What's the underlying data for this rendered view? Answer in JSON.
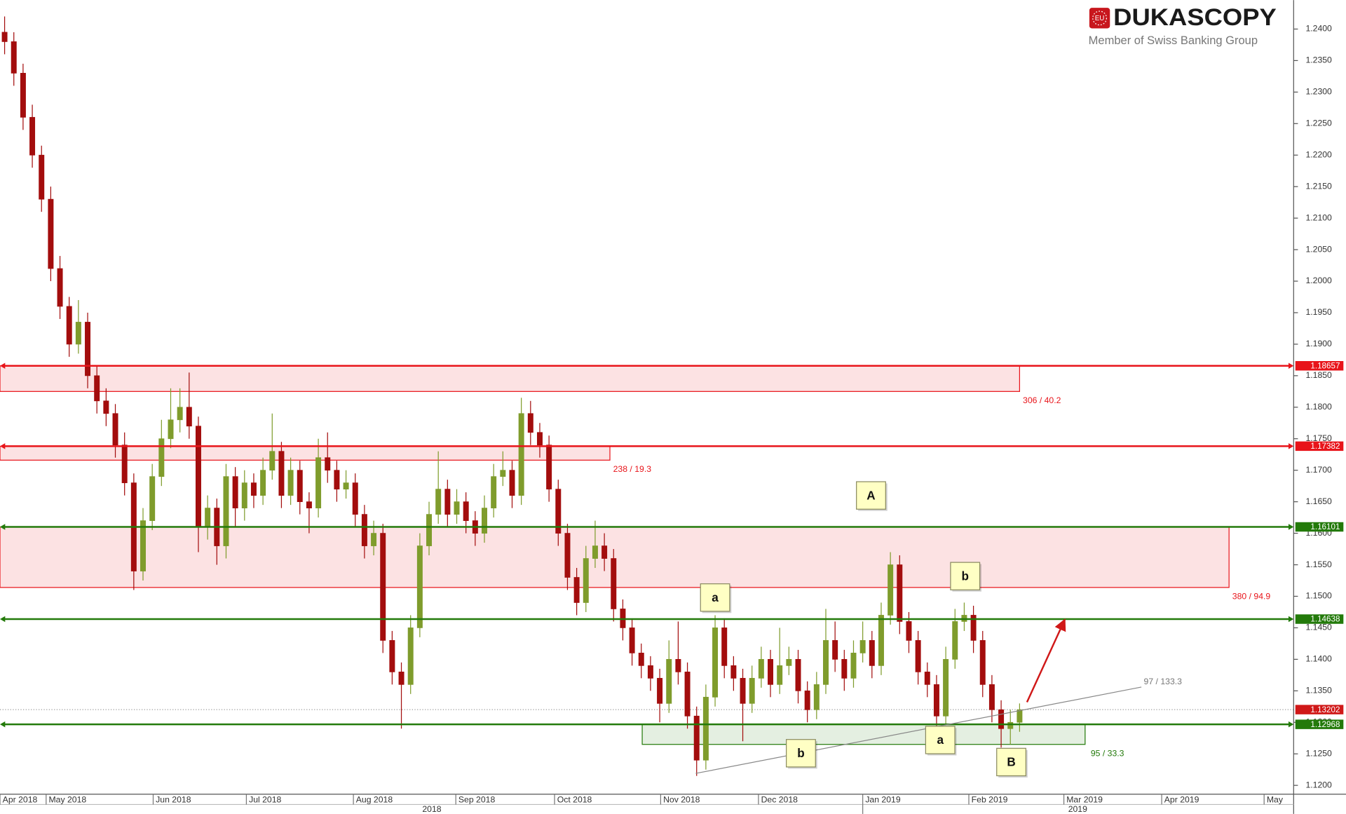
{
  "chart_data": {
    "type": "candlestick",
    "logo": {
      "badge": "EU",
      "name": "DUKASCOPY",
      "tagline": "Member of Swiss Banking Group"
    },
    "up_color": "#7f9c2c",
    "down_color": "#a30d0d",
    "xlim": [
      -0.5,
      139.7
    ],
    "ylim": [
      1.1186,
      1.2446
    ],
    "yticks": [
      {
        "value": 1.12,
        "label": "1.1200"
      },
      {
        "value": 1.125,
        "label": "1.1250"
      },
      {
        "value": 1.13,
        "label": "1.1300"
      },
      {
        "value": 1.135,
        "label": "1.1350"
      },
      {
        "value": 1.14,
        "label": "1.1400"
      },
      {
        "value": 1.145,
        "label": "1.1450"
      },
      {
        "value": 1.15,
        "label": "1.1500"
      },
      {
        "value": 1.155,
        "label": "1.1550"
      },
      {
        "value": 1.16,
        "label": "1.1600"
      },
      {
        "value": 1.165,
        "label": "1.1650"
      },
      {
        "value": 1.17,
        "label": "1.1700"
      },
      {
        "value": 1.175,
        "label": "1.1750"
      },
      {
        "value": 1.18,
        "label": "1.1800"
      },
      {
        "value": 1.185,
        "label": "1.1850"
      },
      {
        "value": 1.19,
        "label": "1.1900"
      },
      {
        "value": 1.195,
        "label": "1.1950"
      },
      {
        "value": 1.2,
        "label": "1.2000"
      },
      {
        "value": 1.205,
        "label": "1.2050"
      },
      {
        "value": 1.21,
        "label": "1.2100"
      },
      {
        "value": 1.215,
        "label": "1.2150"
      },
      {
        "value": 1.22,
        "label": "1.2200"
      },
      {
        "value": 1.225,
        "label": "1.2250"
      },
      {
        "value": 1.23,
        "label": "1.2300"
      },
      {
        "value": 1.235,
        "label": "1.2350"
      },
      {
        "value": 1.24,
        "label": "1.2400"
      }
    ],
    "xticks": [
      {
        "value": -0.5,
        "label": "Apr 2018"
      },
      {
        "value": 4.5,
        "label": "May 2018"
      },
      {
        "value": 16.1,
        "label": "Jun 2018"
      },
      {
        "value": 26.2,
        "label": "Jul 2018"
      },
      {
        "value": 37.8,
        "label": "Aug 2018"
      },
      {
        "value": 48.9,
        "label": "Sep 2018"
      },
      {
        "value": 59.6,
        "label": "Oct 2018"
      },
      {
        "value": 71.1,
        "label": "Nov 2018"
      },
      {
        "value": 81.7,
        "label": "Dec 2018"
      },
      {
        "value": 93.0,
        "label": "Jan 2019"
      },
      {
        "value": 104.5,
        "label": "Feb 2019"
      },
      {
        "value": 114.8,
        "label": "Mar 2019"
      },
      {
        "value": 125.4,
        "label": "Apr 2019"
      },
      {
        "value": 136.5,
        "label": "May"
      }
    ],
    "xticks2": [
      {
        "value": 46.3,
        "label": "2018"
      },
      {
        "value": 116.3,
        "label": "2019"
      }
    ],
    "levels": [
      {
        "value": 1.18657,
        "color": "#e8141a"
      },
      {
        "value": 1.17382,
        "color": "#e8141a"
      },
      {
        "value": 1.16101,
        "color": "#237a0a"
      },
      {
        "value": 1.14638,
        "color": "#237a0a"
      },
      {
        "value": 1.12968,
        "color": "#237a0a"
      }
    ],
    "current": {
      "value": 1.13202,
      "color": "#d01818"
    },
    "zones": [
      {
        "x": [
          -0.5,
          110.0
        ],
        "y": [
          1.1825,
          1.18657
        ],
        "color": "#e8141a",
        "label": "306 / 40.2"
      },
      {
        "x": [
          -0.5,
          65.6
        ],
        "y": [
          1.1716,
          1.1738
        ],
        "color": "#e8141a",
        "label": "238 / 19.3"
      },
      {
        "x": [
          -0.5,
          132.7
        ],
        "y": [
          1.1514,
          1.161
        ],
        "color": "#e8141a",
        "label": "380 / 94.9"
      },
      {
        "x": [
          69.1,
          117.1
        ],
        "y": [
          1.1265,
          1.1297
        ],
        "color": "#237a0a",
        "label": "95 / 33.3"
      }
    ],
    "trendline": {
      "x": [
        74.9,
        123.2
      ],
      "y": [
        1.1219,
        1.1356
      ],
      "label": "97 / 133.3"
    },
    "arrow": {
      "x": [
        110.8,
        114.9
      ],
      "y": [
        1.1332,
        1.1463
      ]
    },
    "waves": [
      {
        "label": "A",
        "x": 93.9,
        "y": 1.166
      },
      {
        "label": "a",
        "x": 77.0,
        "y": 1.1498
      },
      {
        "label": "b",
        "x": 104.1,
        "y": 1.1532
      },
      {
        "label": "b",
        "x": 86.3,
        "y": 1.1251
      },
      {
        "label": "a",
        "x": 101.4,
        "y": 1.1272
      },
      {
        "label": "B",
        "x": 109.1,
        "y": 1.1237
      }
    ],
    "ohlc": [
      [
        1.2395,
        1.242,
        1.236,
        1.238
      ],
      [
        1.238,
        1.2395,
        1.231,
        1.233
      ],
      [
        1.233,
        1.2345,
        1.224,
        1.226
      ],
      [
        1.226,
        1.228,
        1.218,
        1.22
      ],
      [
        1.22,
        1.2215,
        1.211,
        1.213
      ],
      [
        1.213,
        1.215,
        1.2,
        1.202
      ],
      [
        1.202,
        1.204,
        1.194,
        1.196
      ],
      [
        1.196,
        1.1975,
        1.188,
        1.19
      ],
      [
        1.19,
        1.197,
        1.1885,
        1.1935
      ],
      [
        1.1935,
        1.195,
        1.183,
        1.185
      ],
      [
        1.185,
        1.1865,
        1.179,
        1.181
      ],
      [
        1.181,
        1.183,
        1.177,
        1.179
      ],
      [
        1.179,
        1.1805,
        1.172,
        1.174
      ],
      [
        1.174,
        1.176,
        1.166,
        1.168
      ],
      [
        1.168,
        1.1695,
        1.151,
        1.154
      ],
      [
        1.154,
        1.164,
        1.1525,
        1.162
      ],
      [
        1.162,
        1.171,
        1.1605,
        1.169
      ],
      [
        1.169,
        1.178,
        1.1675,
        1.175
      ],
      [
        1.175,
        1.183,
        1.1735,
        1.178
      ],
      [
        1.178,
        1.183,
        1.176,
        1.18
      ],
      [
        1.18,
        1.1855,
        1.175,
        1.177
      ],
      [
        1.177,
        1.1785,
        1.157,
        1.161
      ],
      [
        1.161,
        1.166,
        1.159,
        1.164
      ],
      [
        1.164,
        1.1655,
        1.155,
        1.158
      ],
      [
        1.158,
        1.171,
        1.156,
        1.169
      ],
      [
        1.169,
        1.1705,
        1.161,
        1.164
      ],
      [
        1.164,
        1.17,
        1.162,
        1.168
      ],
      [
        1.168,
        1.1695,
        1.164,
        1.166
      ],
      [
        1.166,
        1.172,
        1.1645,
        1.17
      ],
      [
        1.17,
        1.179,
        1.1685,
        1.173
      ],
      [
        1.173,
        1.1745,
        1.164,
        1.166
      ],
      [
        1.166,
        1.172,
        1.1645,
        1.17
      ],
      [
        1.17,
        1.1715,
        1.163,
        1.165
      ],
      [
        1.165,
        1.1665,
        1.16,
        1.164
      ],
      [
        1.164,
        1.175,
        1.1625,
        1.172
      ],
      [
        1.172,
        1.176,
        1.168,
        1.17
      ],
      [
        1.17,
        1.1715,
        1.165,
        1.167
      ],
      [
        1.167,
        1.17,
        1.1655,
        1.168
      ],
      [
        1.168,
        1.1695,
        1.161,
        1.163
      ],
      [
        1.163,
        1.1645,
        1.156,
        1.158
      ],
      [
        1.158,
        1.162,
        1.1565,
        1.16
      ],
      [
        1.16,
        1.1615,
        1.141,
        1.143
      ],
      [
        1.143,
        1.1445,
        1.136,
        1.138
      ],
      [
        1.138,
        1.1395,
        1.129,
        1.136
      ],
      [
        1.136,
        1.147,
        1.1345,
        1.145
      ],
      [
        1.145,
        1.16,
        1.1435,
        1.158
      ],
      [
        1.158,
        1.165,
        1.1565,
        1.163
      ],
      [
        1.163,
        1.173,
        1.1615,
        1.167
      ],
      [
        1.167,
        1.1685,
        1.161,
        1.163
      ],
      [
        1.163,
        1.167,
        1.1615,
        1.165
      ],
      [
        1.165,
        1.1665,
        1.16,
        1.162
      ],
      [
        1.162,
        1.1635,
        1.158,
        1.16
      ],
      [
        1.16,
        1.166,
        1.1585,
        1.164
      ],
      [
        1.164,
        1.171,
        1.1625,
        1.169
      ],
      [
        1.169,
        1.173,
        1.1675,
        1.17
      ],
      [
        1.17,
        1.1715,
        1.164,
        1.166
      ],
      [
        1.166,
        1.1815,
        1.1645,
        1.179
      ],
      [
        1.179,
        1.181,
        1.174,
        1.176
      ],
      [
        1.176,
        1.1775,
        1.172,
        1.174
      ],
      [
        1.174,
        1.1755,
        1.165,
        1.167
      ],
      [
        1.167,
        1.1685,
        1.158,
        1.16
      ],
      [
        1.16,
        1.1615,
        1.151,
        1.153
      ],
      [
        1.153,
        1.1545,
        1.147,
        1.149
      ],
      [
        1.149,
        1.158,
        1.1475,
        1.156
      ],
      [
        1.156,
        1.162,
        1.1545,
        1.158
      ],
      [
        1.158,
        1.16,
        1.154,
        1.156
      ],
      [
        1.156,
        1.1575,
        1.146,
        1.148
      ],
      [
        1.148,
        1.1495,
        1.143,
        1.145
      ],
      [
        1.145,
        1.1465,
        1.139,
        1.141
      ],
      [
        1.141,
        1.1425,
        1.137,
        1.139
      ],
      [
        1.139,
        1.1405,
        1.135,
        1.137
      ],
      [
        1.137,
        1.1385,
        1.13,
        1.133
      ],
      [
        1.133,
        1.143,
        1.1315,
        1.14
      ],
      [
        1.14,
        1.146,
        1.136,
        1.138
      ],
      [
        1.138,
        1.1395,
        1.129,
        1.131
      ],
      [
        1.131,
        1.1325,
        1.1215,
        1.124
      ],
      [
        1.124,
        1.136,
        1.1225,
        1.134
      ],
      [
        1.134,
        1.147,
        1.1325,
        1.145
      ],
      [
        1.145,
        1.1465,
        1.137,
        1.139
      ],
      [
        1.139,
        1.1405,
        1.135,
        1.137
      ],
      [
        1.137,
        1.1385,
        1.127,
        1.133
      ],
      [
        1.133,
        1.139,
        1.1315,
        1.137
      ],
      [
        1.137,
        1.142,
        1.1355,
        1.14
      ],
      [
        1.14,
        1.1415,
        1.134,
        1.136
      ],
      [
        1.136,
        1.145,
        1.1345,
        1.139
      ],
      [
        1.139,
        1.142,
        1.1375,
        1.14
      ],
      [
        1.14,
        1.1415,
        1.133,
        1.135
      ],
      [
        1.135,
        1.1365,
        1.13,
        1.132
      ],
      [
        1.132,
        1.138,
        1.1305,
        1.136
      ],
      [
        1.136,
        1.148,
        1.1345,
        1.143
      ],
      [
        1.143,
        1.146,
        1.138,
        1.14
      ],
      [
        1.14,
        1.1415,
        1.135,
        1.137
      ],
      [
        1.137,
        1.143,
        1.1355,
        1.141
      ],
      [
        1.141,
        1.146,
        1.1395,
        1.143
      ],
      [
        1.143,
        1.1445,
        1.137,
        1.139
      ],
      [
        1.139,
        1.149,
        1.1375,
        1.147
      ],
      [
        1.147,
        1.157,
        1.1455,
        1.155
      ],
      [
        1.155,
        1.1565,
        1.144,
        1.146
      ],
      [
        1.146,
        1.1475,
        1.141,
        1.143
      ],
      [
        1.143,
        1.1445,
        1.136,
        1.138
      ],
      [
        1.138,
        1.1395,
        1.134,
        1.136
      ],
      [
        1.136,
        1.1375,
        1.129,
        1.131
      ],
      [
        1.131,
        1.142,
        1.1295,
        1.14
      ],
      [
        1.14,
        1.148,
        1.1385,
        1.146
      ],
      [
        1.146,
        1.149,
        1.1445,
        1.147
      ],
      [
        1.147,
        1.1485,
        1.141,
        1.143
      ],
      [
        1.143,
        1.1445,
        1.134,
        1.136
      ],
      [
        1.136,
        1.1375,
        1.13,
        1.132
      ],
      [
        1.132,
        1.1335,
        1.126,
        1.129
      ],
      [
        1.129,
        1.132,
        1.1265,
        1.13
      ],
      [
        1.13,
        1.133,
        1.1285,
        1.132
      ]
    ]
  }
}
